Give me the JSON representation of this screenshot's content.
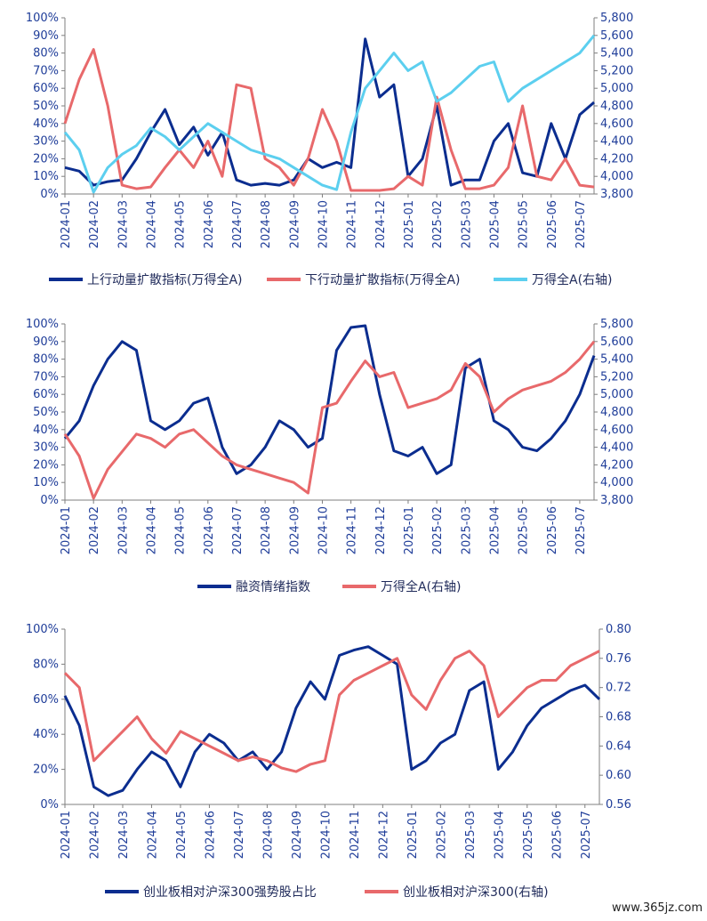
{
  "watermark": "www.365jz.com",
  "colors": {
    "dark_blue": "#0b2d8f",
    "red": "#e8696b",
    "light_blue": "#5ccfef",
    "tick_text": "#1f3d99"
  },
  "chart_data": [
    {
      "type": "line",
      "x_ticks": [
        "2024-01",
        "2024-02",
        "2024-03",
        "2024-04",
        "2024-05",
        "2024-06",
        "2024-07",
        "2024-08",
        "2024-09",
        "2024-10",
        "2024-11",
        "2024-12",
        "2025-01",
        "2025-02",
        "2025-03",
        "2025-04",
        "2025-05",
        "2025-06",
        "2025-07"
      ],
      "y_left_ticks": [
        "0%",
        "10%",
        "20%",
        "30%",
        "40%",
        "50%",
        "60%",
        "70%",
        "80%",
        "90%",
        "100%"
      ],
      "y_right_ticks": [
        "3,800",
        "4,000",
        "4,200",
        "4,400",
        "4,600",
        "4,800",
        "5,000",
        "5,200",
        "5,400",
        "5,600",
        "5,800"
      ],
      "ylim_left": [
        0,
        100
      ],
      "ylim_right": [
        3800,
        5800
      ],
      "x": [
        0,
        0.5,
        1,
        1.5,
        2,
        2.5,
        3,
        3.5,
        4,
        4.5,
        5,
        5.5,
        6,
        6.5,
        7,
        7.5,
        8,
        8.5,
        9,
        9.5,
        10,
        10.5,
        11,
        11.5,
        12,
        12.5,
        13,
        13.5,
        14,
        14.5,
        15,
        15.5,
        16,
        16.5,
        17,
        17.5,
        18,
        18.5
      ],
      "series": [
        {
          "name": "上行动量扩散指标(万得全A)",
          "axis": "left",
          "color": "#0b2d8f",
          "values": [
            15,
            13,
            5,
            7,
            8,
            20,
            35,
            48,
            28,
            38,
            22,
            35,
            8,
            5,
            6,
            5,
            8,
            20,
            15,
            18,
            15,
            88,
            55,
            62,
            10,
            20,
            50,
            5,
            8,
            8,
            30,
            40,
            12,
            10,
            40,
            20,
            45,
            52
          ]
        },
        {
          "name": "下行动量扩散指标(万得全A)",
          "axis": "left",
          "color": "#e8696b",
          "values": [
            40,
            65,
            82,
            50,
            5,
            3,
            4,
            15,
            25,
            15,
            30,
            10,
            62,
            60,
            20,
            15,
            5,
            20,
            48,
            30,
            2,
            2,
            2,
            3,
            10,
            5,
            55,
            25,
            3,
            3,
            5,
            15,
            50,
            10,
            8,
            20,
            5,
            4
          ]
        },
        {
          "name": "万得全A(右轴)",
          "axis": "right",
          "color": "#5ccfef",
          "values": [
            4500,
            4300,
            3820,
            4100,
            4250,
            4350,
            4550,
            4450,
            4300,
            4450,
            4600,
            4500,
            4400,
            4300,
            4250,
            4200,
            4100,
            4000,
            3900,
            3850,
            4500,
            5000,
            5200,
            5400,
            5200,
            5300,
            4850,
            4950,
            5100,
            5250,
            5300,
            4850,
            5000,
            5100,
            5200,
            5300,
            5400,
            5600
          ]
        }
      ]
    },
    {
      "type": "line",
      "x_ticks": [
        "2024-01",
        "2024-02",
        "2024-03",
        "2024-04",
        "2024-05",
        "2024-06",
        "2024-07",
        "2024-08",
        "2024-09",
        "2024-10",
        "2024-11",
        "2024-12",
        "2025-01",
        "2025-02",
        "2025-03",
        "2025-04",
        "2025-05",
        "2025-06",
        "2025-07"
      ],
      "y_left_ticks": [
        "0%",
        "10%",
        "20%",
        "30%",
        "40%",
        "50%",
        "60%",
        "70%",
        "80%",
        "90%",
        "100%"
      ],
      "y_right_ticks": [
        "3,800",
        "4,000",
        "4,200",
        "4,400",
        "4,600",
        "4,800",
        "5,000",
        "5,200",
        "5,400",
        "5,600",
        "5,800"
      ],
      "ylim_left": [
        0,
        100
      ],
      "ylim_right": [
        3800,
        5800
      ],
      "x": [
        0,
        0.5,
        1,
        1.5,
        2,
        2.5,
        3,
        3.5,
        4,
        4.5,
        5,
        5.5,
        6,
        6.5,
        7,
        7.5,
        8,
        8.5,
        9,
        9.5,
        10,
        10.5,
        11,
        11.5,
        12,
        12.5,
        13,
        13.5,
        14,
        14.5,
        15,
        15.5,
        16,
        16.5,
        17,
        17.5,
        18,
        18.5
      ],
      "series": [
        {
          "name": "融资情绪指数",
          "axis": "left",
          "color": "#0b2d8f",
          "values": [
            35,
            45,
            65,
            80,
            90,
            85,
            45,
            40,
            45,
            55,
            58,
            30,
            15,
            20,
            30,
            45,
            40,
            30,
            35,
            85,
            98,
            99,
            60,
            28,
            25,
            30,
            15,
            20,
            75,
            80,
            45,
            40,
            30,
            28,
            35,
            45,
            60,
            82
          ]
        },
        {
          "name": "万得全A(右轴)",
          "axis": "right",
          "color": "#e8696b",
          "values": [
            4550,
            4300,
            3820,
            4150,
            4350,
            4550,
            4500,
            4400,
            4550,
            4600,
            4450,
            4300,
            4200,
            4150,
            4100,
            4050,
            4000,
            3880,
            4850,
            4900,
            5150,
            5380,
            5200,
            5250,
            4850,
            4900,
            4950,
            5050,
            5350,
            5200,
            4800,
            4950,
            5050,
            5100,
            5150,
            5250,
            5400,
            5600
          ]
        }
      ]
    },
    {
      "type": "line",
      "x_ticks": [
        "2024-01",
        "2024-02",
        "2024-03",
        "2024-04",
        "2024-05",
        "2024-06",
        "2024-07",
        "2024-08",
        "2024-09",
        "2024-10",
        "2024-11",
        "2024-12",
        "2025-01",
        "2025-02",
        "2025-03",
        "2025-04",
        "2025-05",
        "2025-06",
        "2025-07"
      ],
      "y_left_ticks": [
        "0%",
        "20%",
        "40%",
        "60%",
        "80%",
        "100%"
      ],
      "y_right_ticks": [
        "0.56",
        "0.60",
        "0.64",
        "0.68",
        "0.72",
        "0.76",
        "0.80"
      ],
      "ylim_left": [
        0,
        100
      ],
      "ylim_right": [
        0.56,
        0.8
      ],
      "x": [
        0,
        0.5,
        1,
        1.5,
        2,
        2.5,
        3,
        3.5,
        4,
        4.5,
        5,
        5.5,
        6,
        6.5,
        7,
        7.5,
        8,
        8.5,
        9,
        9.5,
        10,
        10.5,
        11,
        11.5,
        12,
        12.5,
        13,
        13.5,
        14,
        14.5,
        15,
        15.5,
        16,
        16.5,
        17,
        17.5,
        18,
        18.5
      ],
      "series": [
        {
          "name": "创业板相对沪深300强势股占比",
          "axis": "left",
          "color": "#0b2d8f",
          "values": [
            62,
            45,
            10,
            5,
            8,
            20,
            30,
            25,
            10,
            30,
            40,
            35,
            25,
            30,
            20,
            30,
            55,
            70,
            60,
            85,
            88,
            90,
            85,
            80,
            20,
            25,
            35,
            40,
            65,
            70,
            20,
            30,
            45,
            55,
            60,
            65,
            68,
            60
          ]
        },
        {
          "name": "创业板相对沪深300(右轴)",
          "axis": "right",
          "color": "#e8696b",
          "values": [
            0.74,
            0.72,
            0.62,
            0.64,
            0.66,
            0.68,
            0.65,
            0.63,
            0.66,
            0.65,
            0.64,
            0.63,
            0.62,
            0.625,
            0.62,
            0.61,
            0.605,
            0.615,
            0.62,
            0.71,
            0.73,
            0.74,
            0.75,
            0.76,
            0.71,
            0.69,
            0.73,
            0.76,
            0.77,
            0.75,
            0.68,
            0.7,
            0.72,
            0.73,
            0.73,
            0.75,
            0.76,
            0.77
          ]
        }
      ]
    }
  ]
}
